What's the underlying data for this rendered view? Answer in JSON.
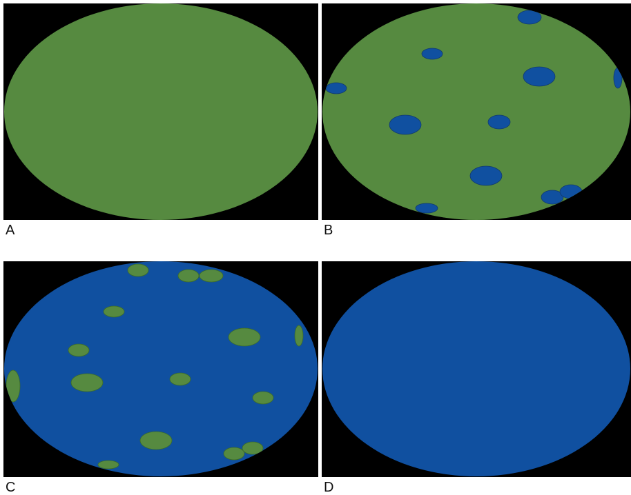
{
  "colors": {
    "background": "#000000",
    "green": "#568a40",
    "blue": "#1050a0",
    "outline": "#3a6a2a"
  },
  "panels": [
    {
      "label": "A",
      "base": "green",
      "spot": "blue",
      "spot_count": 0
    },
    {
      "label": "B",
      "base": "green",
      "spot": "blue",
      "spot_count": 11
    },
    {
      "label": "C",
      "base": "blue",
      "spot": "green",
      "spot_count": 15
    },
    {
      "label": "D",
      "base": "blue",
      "spot": "green",
      "spot_count": 0
    }
  ]
}
